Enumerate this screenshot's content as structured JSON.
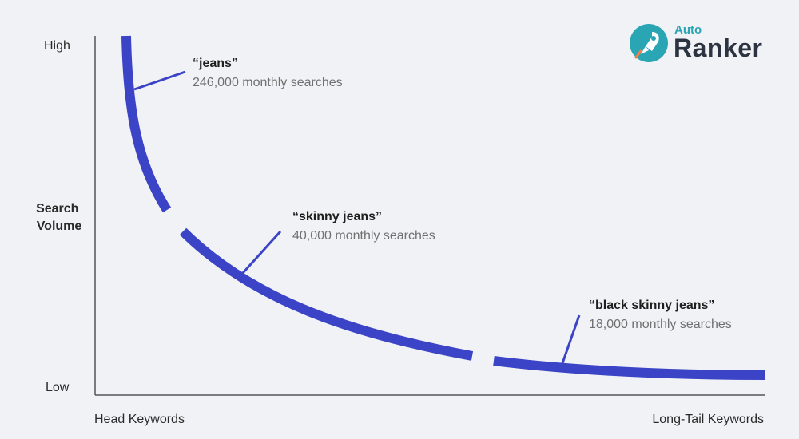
{
  "logo": {
    "small_text": "Auto",
    "big_text": "Ranker",
    "icon": "rocket-icon",
    "accent": "#2aa5b4"
  },
  "chart_data": {
    "type": "line",
    "title": "",
    "ylabel": "Search\nVolume",
    "y_ticks": [
      "High",
      "Low"
    ],
    "x_ticks": [
      "Head Keywords",
      "Long-Tail Keywords"
    ],
    "series_color": "#3b44c6",
    "annotations": [
      {
        "keyword": "“jeans”",
        "detail": "246,000 monthly searches",
        "value": 246000
      },
      {
        "keyword": "“skinny jeans”",
        "detail": "40,000 monthly searches",
        "value": 40000
      },
      {
        "keyword": "“black skinny jeans”",
        "detail": "18,000 monthly searches",
        "value": 18000
      }
    ],
    "grid": false
  }
}
